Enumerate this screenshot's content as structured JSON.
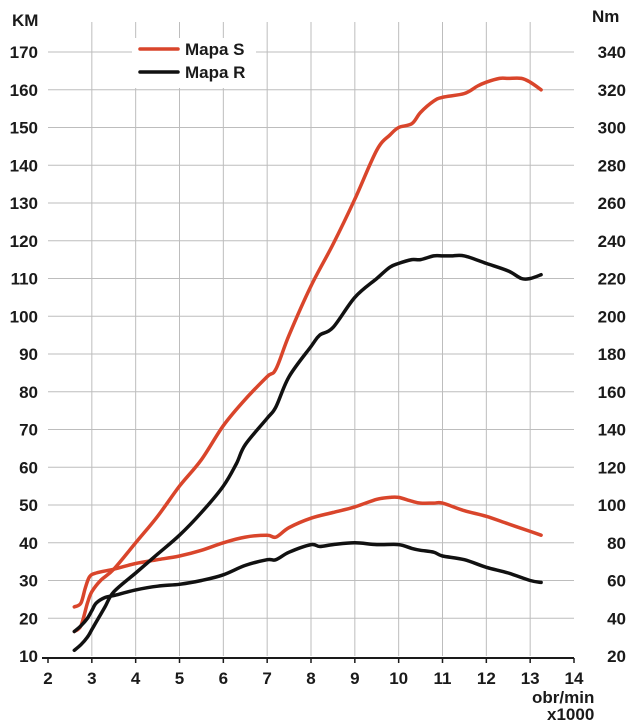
{
  "chart_data": {
    "type": "line",
    "title": "",
    "xlabel": "obr/min x1000",
    "xlabel_line1": "obr/min",
    "xlabel_line2": "x1000",
    "ylabel_left": "KM",
    "ylabel_right": "Nm",
    "xlim": [
      2,
      14
    ],
    "ylim_left": [
      10,
      170
    ],
    "ylim_right": [
      20,
      340
    ],
    "xticks": [
      "2",
      "3",
      "4",
      "5",
      "6",
      "7",
      "8",
      "9",
      "10",
      "11",
      "12",
      "13",
      "14"
    ],
    "yticks_left": [
      "10",
      "20",
      "30",
      "40",
      "50",
      "60",
      "70",
      "80",
      "90",
      "100",
      "110",
      "120",
      "130",
      "140",
      "150",
      "160",
      "170"
    ],
    "yticks_right": [
      "20",
      "40",
      "60",
      "80",
      "100",
      "120",
      "140",
      "160",
      "180",
      "200",
      "220",
      "240",
      "260",
      "280",
      "300",
      "320",
      "340"
    ],
    "grid": true,
    "legend_position": "top-left",
    "colors": {
      "mapa_s": "#d9452b",
      "mapa_r": "#111111",
      "grid": "#bdbdbd"
    },
    "series": [
      {
        "name": "Mapa S",
        "quantity": "power",
        "axis": "left",
        "color": "#d9452b",
        "x": [
          2.6,
          2.75,
          2.9,
          3.0,
          3.2,
          3.5,
          4.0,
          4.5,
          5.0,
          5.5,
          6.0,
          6.5,
          7.0,
          7.2,
          7.5,
          8.0,
          8.5,
          9.0,
          9.5,
          9.8,
          10.0,
          10.3,
          10.5,
          10.8,
          11.0,
          11.5,
          11.8,
          12.0,
          12.3,
          12.5,
          12.8,
          13.0,
          13.25
        ],
        "values": [
          16.5,
          18,
          24,
          27,
          30,
          33,
          40,
          47,
          55,
          62,
          71,
          78,
          84,
          86,
          95,
          108,
          119,
          131,
          144,
          148,
          150,
          151,
          154,
          157,
          158,
          159,
          161,
          162,
          163,
          163,
          163,
          162,
          160
        ]
      },
      {
        "name": "Mapa S",
        "quantity": "torque",
        "axis": "right",
        "color": "#d9452b",
        "x": [
          2.6,
          2.75,
          2.85,
          2.95,
          3.1,
          3.5,
          4.0,
          4.5,
          5.0,
          5.5,
          6.0,
          6.5,
          7.0,
          7.2,
          7.5,
          8.0,
          8.5,
          9.0,
          9.5,
          9.8,
          10.0,
          10.3,
          10.5,
          10.8,
          11.0,
          11.5,
          12.0,
          12.5,
          13.0,
          13.25
        ],
        "values": [
          46,
          48,
          56,
          62,
          64,
          66,
          69,
          71,
          73,
          76,
          80,
          83,
          84,
          83,
          88,
          93,
          96,
          99,
          103,
          104,
          104,
          102,
          101,
          101,
          101,
          97,
          94,
          90,
          86,
          84
        ]
      },
      {
        "name": "Mapa R",
        "quantity": "power",
        "axis": "left",
        "color": "#111111",
        "x": [
          2.6,
          2.75,
          2.9,
          3.0,
          3.1,
          3.3,
          3.5,
          4.0,
          4.5,
          5.0,
          5.5,
          6.0,
          6.3,
          6.5,
          7.0,
          7.2,
          7.5,
          8.0,
          8.2,
          8.5,
          9.0,
          9.5,
          9.8,
          10.0,
          10.3,
          10.5,
          10.8,
          11.0,
          11.2,
          11.5,
          12.0,
          12.5,
          12.8,
          13.0,
          13.25
        ],
        "values": [
          11.5,
          13,
          15,
          17,
          19,
          23,
          27,
          32,
          37,
          42,
          48,
          55,
          61,
          66,
          73,
          76,
          84,
          92,
          95,
          97,
          105,
          110,
          113,
          114,
          115,
          115,
          116,
          116,
          116,
          116,
          114,
          112,
          110,
          110,
          111
        ]
      },
      {
        "name": "Mapa R",
        "quantity": "torque",
        "axis": "right",
        "color": "#111111",
        "x": [
          2.6,
          2.75,
          2.9,
          3.0,
          3.1,
          3.3,
          3.5,
          4.0,
          4.5,
          5.0,
          5.5,
          6.0,
          6.5,
          7.0,
          7.2,
          7.5,
          8.0,
          8.2,
          8.5,
          9.0,
          9.5,
          10.0,
          10.3,
          10.5,
          10.8,
          11.0,
          11.5,
          12.0,
          12.5,
          13.0,
          13.25
        ],
        "values": [
          33,
          36,
          40,
          44,
          48,
          51,
          52,
          55,
          57,
          58,
          60,
          63,
          68,
          71,
          71,
          75,
          79,
          78,
          79,
          80,
          79,
          79,
          77,
          76,
          75,
          73,
          71,
          67,
          64,
          60,
          59
        ]
      }
    ]
  }
}
